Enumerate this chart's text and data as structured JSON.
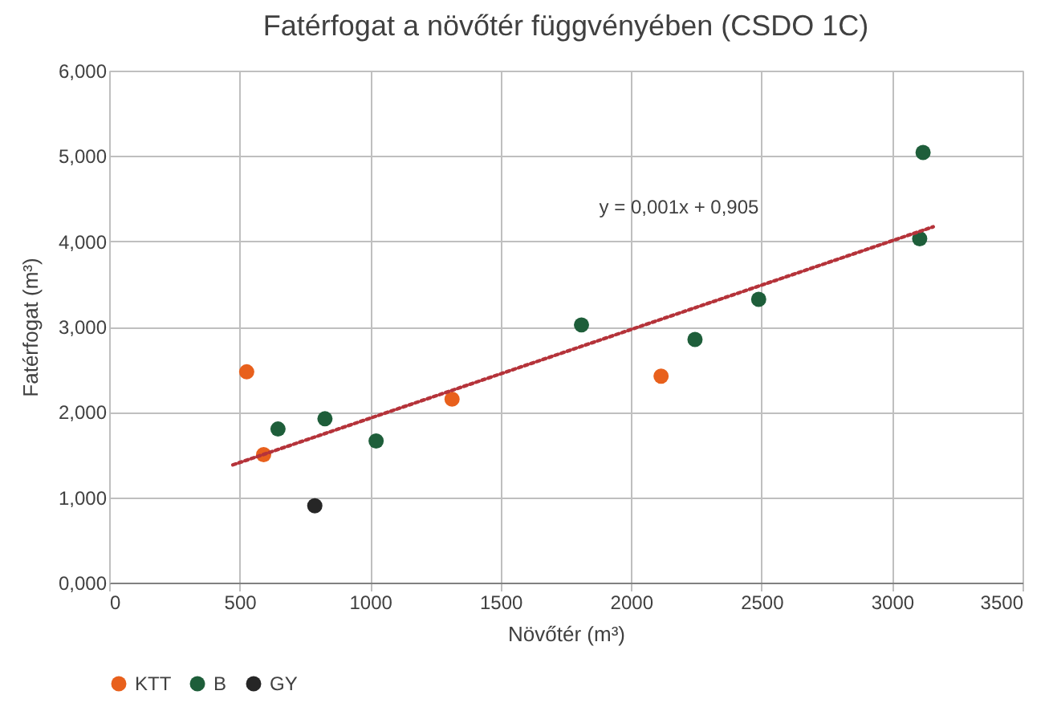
{
  "chart_data": {
    "type": "scatter",
    "title": "Fatérfogat a növőtér függvényében (CSDO 1C)",
    "xlabel": "Növőtér (m³)",
    "ylabel": "Fatérfogat (m³)",
    "series": [
      {
        "name": "KTT",
        "color": "#e8601c",
        "x": [
          527,
          592,
          1314,
          2115
        ],
        "values": [
          2.47,
          1.5,
          2.15,
          2.42
        ]
      },
      {
        "name": "B",
        "color": "#1e5e3a",
        "x": [
          647,
          827,
          1023,
          1810,
          2245,
          2489,
          3106,
          3119
        ],
        "values": [
          1.8,
          1.92,
          1.66,
          3.02,
          2.85,
          3.32,
          4.03,
          5.04
        ]
      },
      {
        "name": "GY",
        "color": "#262626",
        "x": [
          788
        ],
        "values": [
          0.9
        ]
      },
      {
        "type": "line",
        "color": "#b5333a",
        "line_style": "dotted",
        "marker": "none",
        "x": [
          474,
          3158
        ],
        "values": [
          1.38,
          4.17
        ]
      }
    ],
    "annotations": [
      "y = 0,001x + 0,905"
    ],
    "xlim": [
      0,
      3500
    ],
    "xticks": [
      0,
      500,
      1000,
      1500,
      2000,
      2500,
      3000,
      3500
    ],
    "ylim": [
      0,
      6
    ],
    "yticks": [
      {
        "value": 0,
        "label": "0,000"
      },
      {
        "value": 1,
        "label": "1,000"
      },
      {
        "value": 2,
        "label": "2,000"
      },
      {
        "value": 3,
        "label": "3,000"
      },
      {
        "value": 4,
        "label": "4,000"
      },
      {
        "value": 5,
        "label": "5,000"
      },
      {
        "value": 6,
        "label": "6,000"
      }
    ],
    "grid": true,
    "legend": "bottom",
    "marker": "circle"
  }
}
